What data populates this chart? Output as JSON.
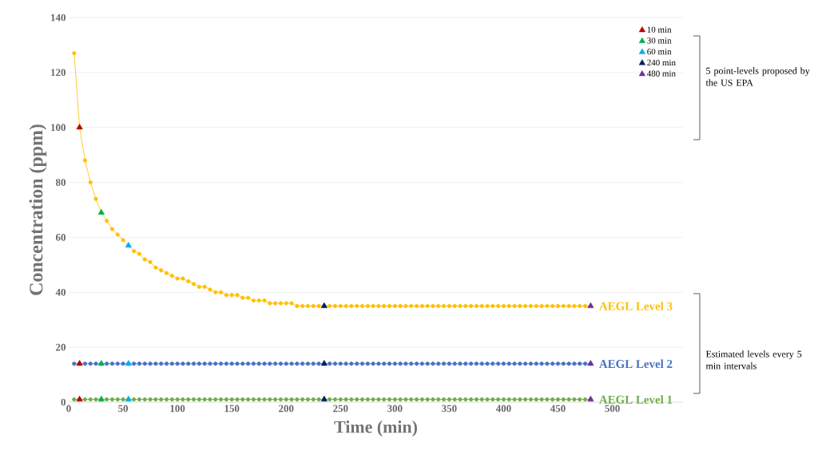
{
  "chart_data": {
    "type": "line",
    "xlabel": "Time (min)",
    "ylabel": "Concentration (ppm)",
    "x": [
      5,
      10,
      15,
      20,
      25,
      30,
      35,
      40,
      45,
      50,
      55,
      60,
      65,
      70,
      75,
      80,
      85,
      90,
      95,
      100,
      105,
      110,
      115,
      120,
      125,
      130,
      135,
      140,
      145,
      150,
      155,
      160,
      165,
      170,
      175,
      180,
      185,
      190,
      195,
      200,
      205,
      210,
      215,
      220,
      225,
      230,
      235,
      240,
      245,
      250,
      255,
      260,
      265,
      270,
      275,
      280,
      285,
      290,
      295,
      300,
      305,
      310,
      315,
      320,
      325,
      330,
      335,
      340,
      345,
      350,
      355,
      360,
      365,
      370,
      375,
      380,
      385,
      390,
      395,
      400,
      405,
      410,
      415,
      420,
      425,
      430,
      435,
      440,
      445,
      450,
      455,
      460,
      465,
      470,
      475,
      480
    ],
    "xlim": [
      0,
      565
    ],
    "xticks": [
      0,
      50,
      100,
      150,
      200,
      250,
      300,
      350,
      400,
      450,
      500
    ],
    "ylim": [
      0,
      140
    ],
    "yticks": [
      0,
      20,
      40,
      60,
      80,
      100,
      120,
      140
    ],
    "grid": "y",
    "legend": "top right",
    "series": [
      {
        "name": "AEGL Level 3",
        "marker": "circle",
        "color": "#ffc000",
        "values": [
          127,
          100,
          88,
          80,
          74,
          69,
          66,
          63,
          61,
          59,
          57,
          55,
          54,
          52,
          51,
          49,
          48,
          47,
          46,
          45,
          45,
          44,
          43,
          42,
          42,
          41,
          40,
          40,
          39,
          39,
          39,
          38,
          38,
          37,
          37,
          37,
          36,
          36,
          36,
          36,
          36,
          35,
          35,
          35,
          35,
          35,
          35,
          35,
          35,
          35,
          35,
          35,
          35,
          35,
          35,
          35,
          35,
          35,
          35,
          35,
          35,
          35,
          35,
          35,
          35,
          35,
          35,
          35,
          35,
          35,
          35,
          35,
          35,
          35,
          35,
          35,
          35,
          35,
          35,
          35,
          35,
          35,
          35,
          35,
          35,
          35,
          35,
          35,
          35,
          35,
          35,
          35,
          35,
          35,
          35,
          35
        ]
      },
      {
        "name": "AEGL Level 2",
        "marker": "circle",
        "color": "#4472c4",
        "values": [
          14,
          14,
          14,
          14,
          14,
          14,
          14,
          14,
          14,
          14,
          14,
          14,
          14,
          14,
          14,
          14,
          14,
          14,
          14,
          14,
          14,
          14,
          14,
          14,
          14,
          14,
          14,
          14,
          14,
          14,
          14,
          14,
          14,
          14,
          14,
          14,
          14,
          14,
          14,
          14,
          14,
          14,
          14,
          14,
          14,
          14,
          14,
          14,
          14,
          14,
          14,
          14,
          14,
          14,
          14,
          14,
          14,
          14,
          14,
          14,
          14,
          14,
          14,
          14,
          14,
          14,
          14,
          14,
          14,
          14,
          14,
          14,
          14,
          14,
          14,
          14,
          14,
          14,
          14,
          14,
          14,
          14,
          14,
          14,
          14,
          14,
          14,
          14,
          14,
          14,
          14,
          14,
          14,
          14,
          14,
          14
        ]
      },
      {
        "name": "AEGL Level 1",
        "marker": "circle",
        "color": "#70ad47",
        "values": [
          1,
          1,
          1,
          1,
          1,
          1,
          1,
          1,
          1,
          1,
          1,
          1,
          1,
          1,
          1,
          1,
          1,
          1,
          1,
          1,
          1,
          1,
          1,
          1,
          1,
          1,
          1,
          1,
          1,
          1,
          1,
          1,
          1,
          1,
          1,
          1,
          1,
          1,
          1,
          1,
          1,
          1,
          1,
          1,
          1,
          1,
          1,
          1,
          1,
          1,
          1,
          1,
          1,
          1,
          1,
          1,
          1,
          1,
          1,
          1,
          1,
          1,
          1,
          1,
          1,
          1,
          1,
          1,
          1,
          1,
          1,
          1,
          1,
          1,
          1,
          1,
          1,
          1,
          1,
          1,
          1,
          1,
          1,
          1,
          1,
          1,
          1,
          1,
          1,
          1,
          1,
          1,
          1,
          1,
          1,
          1
        ]
      },
      {
        "name": "10 min",
        "type": "scatter",
        "marker": "triangle",
        "color": "#c00000",
        "x": [
          10,
          10,
          10
        ],
        "values": [
          100,
          14,
          1
        ]
      },
      {
        "name": "30 min",
        "type": "scatter",
        "marker": "triangle",
        "color": "#00b050",
        "x": [
          30,
          30,
          30
        ],
        "values": [
          69,
          14,
          1
        ]
      },
      {
        "name": "60 min",
        "type": "scatter",
        "marker": "triangle",
        "color": "#00b0f0",
        "x": [
          55,
          55,
          55
        ],
        "values": [
          57,
          14,
          1
        ]
      },
      {
        "name": "240 min",
        "type": "scatter",
        "marker": "triangle",
        "color": "#002060",
        "x": [
          235,
          235,
          235
        ],
        "values": [
          35,
          14,
          1
        ]
      },
      {
        "name": "480 min",
        "type": "scatter",
        "marker": "triangle",
        "color": "#7030a0",
        "x": [
          480,
          480,
          480
        ],
        "values": [
          35,
          14,
          1
        ]
      }
    ],
    "annotations": [
      "5 point-levels proposed by the US EPA",
      "Estimated levels every 5 min intervals"
    ]
  }
}
